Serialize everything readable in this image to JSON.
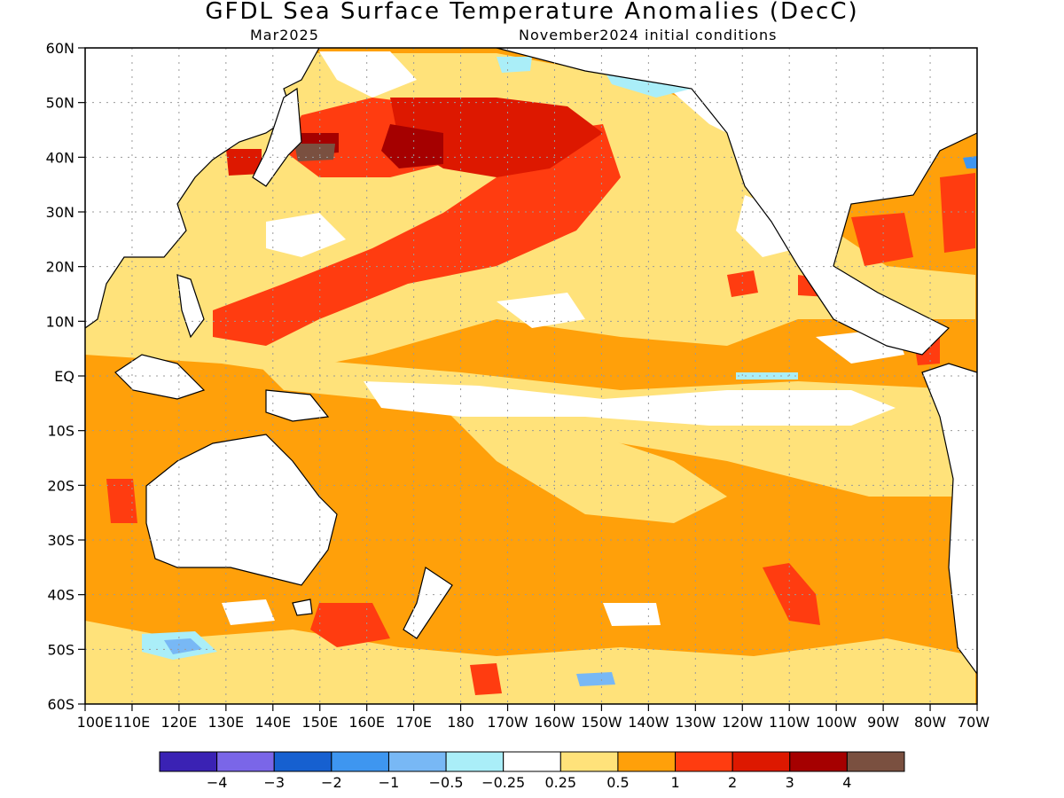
{
  "map": {
    "title": "GFDL Sea Surface Temperature Anomalies (DecC)",
    "valid_month": "Mar2025",
    "init_conditions": "November2024 initial conditions",
    "lat_labels": [
      "60N",
      "50N",
      "40N",
      "30N",
      "20N",
      "10N",
      "EQ",
      "10S",
      "20S",
      "30S",
      "40S",
      "50S",
      "60S"
    ],
    "lon_labels": [
      "100E",
      "110E",
      "120E",
      "130E",
      "140E",
      "150E",
      "160E",
      "170E",
      "180",
      "170W",
      "160W",
      "150W",
      "140W",
      "130W",
      "120W",
      "110W",
      "100W",
      "90W",
      "80W",
      "70W"
    ]
  },
  "colorbar": {
    "colors": [
      "#3a22b4",
      "#7a66e8",
      "#1660d0",
      "#3e96f0",
      "#78b8f5",
      "#aaeef8",
      "#ffffff",
      "#ffe27a",
      "#ffa00a",
      "#ff3c10",
      "#dd1800",
      "#a50000",
      "#7a5040"
    ],
    "labels": [
      "−4",
      "−3",
      "−2",
      "−1",
      "−0.5",
      "−0.25",
      "0.25",
      "0.5",
      "1",
      "2",
      "3",
      "4"
    ]
  }
}
